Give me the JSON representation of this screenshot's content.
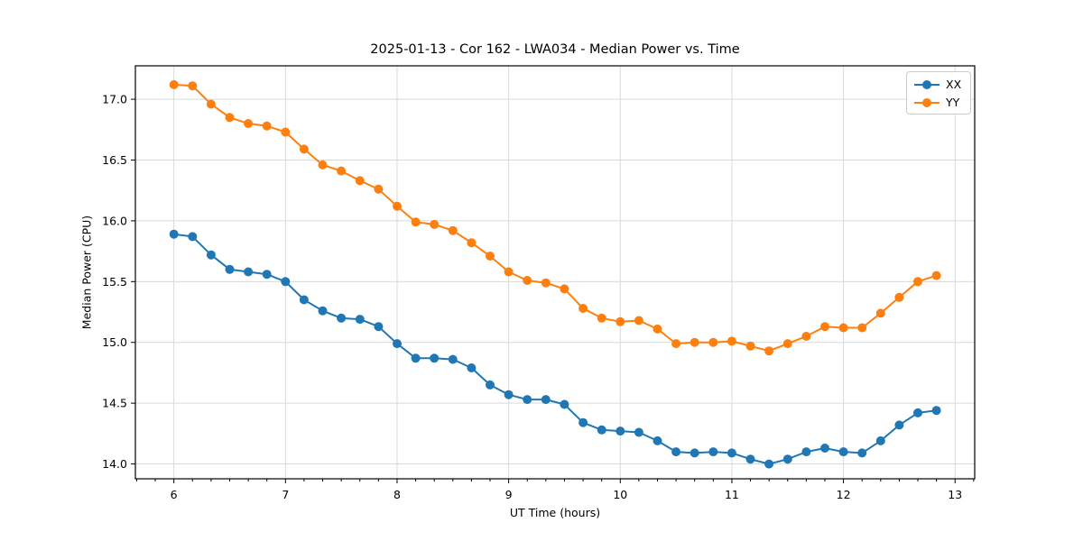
{
  "chart_data": {
    "type": "line",
    "title": "2025-01-13 - Cor 162 - LWA034 - Median Power vs. Time",
    "xlabel": "UT Time (hours)",
    "ylabel": "Median Power (CPU)",
    "xlim": [
      5.655,
      13.176
    ],
    "ylim": [
      13.878,
      17.275
    ],
    "x_ticks": [
      6,
      7,
      8,
      9,
      10,
      11,
      12,
      13
    ],
    "y_ticks": [
      14.0,
      14.5,
      15.0,
      15.5,
      16.0,
      16.5,
      17.0
    ],
    "x_minor_ticks_per_major": 6,
    "grid": true,
    "background_color": "#ffffff",
    "grid_color": "#d9d9d9",
    "frame_color": "#000000",
    "legend": {
      "position": "upper right"
    },
    "x": [
      6.0,
      6.1667,
      6.3333,
      6.5,
      6.6667,
      6.8333,
      7.0,
      7.1667,
      7.3333,
      7.5,
      7.6667,
      7.8333,
      8.0,
      8.1667,
      8.3333,
      8.5,
      8.6667,
      8.8333,
      9.0,
      9.1667,
      9.3333,
      9.5,
      9.6667,
      9.8333,
      10.0,
      10.1667,
      10.3333,
      10.5,
      10.6667,
      10.8333,
      11.0,
      11.1667,
      11.3333,
      11.5,
      11.6667,
      11.8333,
      12.0,
      12.1667,
      12.3333,
      12.5,
      12.6667,
      12.8333
    ],
    "series": [
      {
        "name": "XX",
        "color": "#1f77b4",
        "values": [
          15.89,
          15.87,
          15.72,
          15.6,
          15.58,
          15.56,
          15.5,
          15.35,
          15.26,
          15.2,
          15.19,
          15.13,
          14.99,
          14.87,
          14.87,
          14.86,
          14.79,
          14.65,
          14.57,
          14.53,
          14.53,
          14.49,
          14.34,
          14.28,
          14.27,
          14.26,
          14.19,
          14.1,
          14.09,
          14.1,
          14.09,
          14.04,
          14.0,
          14.04,
          14.1,
          14.13,
          14.1,
          14.09,
          14.19,
          14.32,
          14.42,
          14.44
        ]
      },
      {
        "name": "YY",
        "color": "#ff7f0e",
        "values": [
          17.12,
          17.11,
          16.96,
          16.85,
          16.8,
          16.78,
          16.73,
          16.59,
          16.46,
          16.41,
          16.33,
          16.26,
          16.12,
          15.99,
          15.97,
          15.92,
          15.82,
          15.71,
          15.58,
          15.51,
          15.49,
          15.44,
          15.28,
          15.2,
          15.17,
          15.18,
          15.11,
          14.99,
          15.0,
          15.0,
          15.01,
          14.97,
          14.93,
          14.99,
          15.05,
          15.13,
          15.12,
          15.12,
          15.24,
          15.37,
          15.5,
          15.55
        ]
      }
    ]
  }
}
